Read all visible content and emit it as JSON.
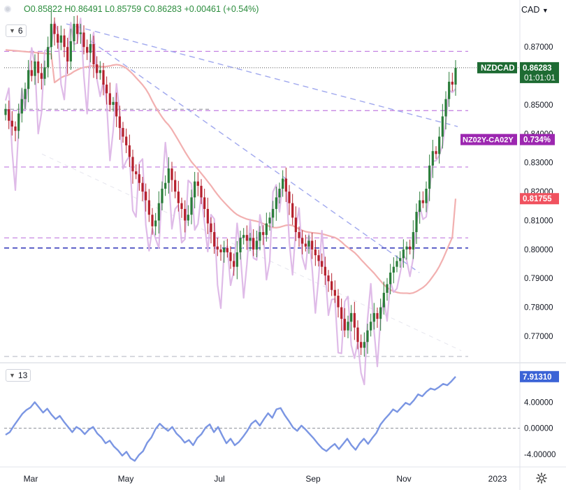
{
  "header": {
    "open": "O0.85822",
    "high": "H0.86491",
    "low": "L0.85759",
    "close": "C0.86283",
    "change": "+0.00461 (+0.54%)",
    "currency": "CAD"
  },
  "indicator_pills": {
    "main": "6",
    "lower": "13"
  },
  "colors": {
    "up": "#2a7d3a",
    "down": "#b5202d",
    "spread_line": "#dcb4e6",
    "ma_line": "#f2b0b0",
    "purple_dashed": "#c07be0",
    "blue_dashed": "#1a1fb0",
    "trend_dashed": "#a0a8ee",
    "oscillator": "#7b96e3",
    "price_label_bg": "#1e6b33",
    "spread_label_bg": "#9c27b0",
    "ma_label_bg": "#f0525f",
    "osc_label_bg": "#3b63d6"
  },
  "chart_data": [
    {
      "type": "candlestick",
      "symbol": "NZDCAD",
      "title": "",
      "x_ticks": [
        "Mar",
        "May",
        "Jul",
        "Sep",
        "Nov",
        "2023"
      ],
      "y_ticks": [
        "0.87000",
        "0.85000",
        "0.84000",
        "0.83000",
        "0.82000",
        "0.81000",
        "0.80000",
        "0.79000",
        "0.78000",
        "0.77000"
      ],
      "ylim": [
        0.7625,
        0.879
      ],
      "closes": [
        0.8485,
        0.8445,
        0.8425,
        0.841,
        0.847,
        0.852,
        0.8555,
        0.862,
        0.86,
        0.865,
        0.861,
        0.859,
        0.863,
        0.87,
        0.878,
        0.8745,
        0.8715,
        0.874,
        0.87,
        0.865,
        0.872,
        0.878,
        0.8745,
        0.875,
        0.87,
        0.868,
        0.871,
        0.864,
        0.861,
        0.862,
        0.857,
        0.854,
        0.85,
        0.851,
        0.846,
        0.842,
        0.839,
        0.836,
        0.832,
        0.827,
        0.826,
        0.823,
        0.82,
        0.817,
        0.812,
        0.808,
        0.81,
        0.816,
        0.821,
        0.823,
        0.828,
        0.824,
        0.82,
        0.816,
        0.814,
        0.81,
        0.812,
        0.818,
        0.8235,
        0.822,
        0.818,
        0.814,
        0.809,
        0.806,
        0.801,
        0.8,
        0.799,
        0.8005,
        0.799,
        0.796,
        0.794,
        0.799,
        0.804,
        0.805,
        0.803,
        0.804,
        0.8,
        0.803,
        0.806,
        0.805,
        0.809,
        0.811,
        0.814,
        0.818,
        0.821,
        0.8245,
        0.82,
        0.816,
        0.811,
        0.806,
        0.804,
        0.802,
        0.801,
        0.803,
        0.8,
        0.798,
        0.796,
        0.794,
        0.791,
        0.789,
        0.786,
        0.784,
        0.78,
        0.776,
        0.772,
        0.775,
        0.778,
        0.773,
        0.768,
        0.766,
        0.768,
        0.772,
        0.775,
        0.778,
        0.776,
        0.78,
        0.785,
        0.788,
        0.792,
        0.794,
        0.796,
        0.797,
        0.8,
        0.801,
        0.8,
        0.806,
        0.813,
        0.817,
        0.816,
        0.821,
        0.829,
        0.834,
        0.833,
        0.839,
        0.846,
        0.852,
        0.858,
        0.857,
        0.8628
      ],
      "spread": {
        "name": "NZ02Y-CA02Y",
        "last_label": "0.734%"
      },
      "moving_average": {
        "last_label": "0.81755"
      },
      "price_label": "NZDCAD",
      "price_value": "0.86283",
      "price_timer": "01:01:01",
      "horizontal_levels": [
        0.8685,
        0.848,
        0.8285,
        0.804
      ],
      "blue_level": 0.8005,
      "bottom_level": 0.763
    },
    {
      "type": "line",
      "title": "",
      "y_ticks": [
        "4.00000",
        "0.00000",
        "-4.00000"
      ],
      "ylim": [
        -5.5,
        9.5
      ],
      "last_label": "7.91310",
      "values": [
        -1.0,
        -0.6,
        0.4,
        1.3,
        2.2,
        2.8,
        3.2,
        4.0,
        3.2,
        2.4,
        3.0,
        2.1,
        1.4,
        1.9,
        1.0,
        0.2,
        -0.6,
        0.2,
        -0.2,
        -0.9,
        -0.2,
        0.2,
        -0.8,
        -1.4,
        -2.3,
        -1.9,
        -2.8,
        -3.4,
        -4.2,
        -3.6,
        -4.6,
        -5.0,
        -4.1,
        -3.5,
        -2.2,
        -1.4,
        -0.1,
        0.7,
        0.1,
        -0.4,
        0.2,
        -0.8,
        -1.4,
        -2.2,
        -1.8,
        -2.6,
        -1.5,
        -0.9,
        0.1,
        0.6,
        -0.6,
        0.2,
        -1.1,
        -2.3,
        -1.6,
        -2.6,
        -2.1,
        -1.3,
        -0.4,
        0.7,
        1.2,
        0.4,
        1.4,
        2.3,
        1.6,
        2.9,
        3.1,
        2.0,
        1.1,
        0.1,
        -0.4,
        0.4,
        -0.2,
        -0.9,
        -1.6,
        -2.4,
        -3.1,
        -3.5,
        -2.9,
        -2.4,
        -3.2,
        -2.4,
        -1.6,
        -2.6,
        -3.3,
        -2.3,
        -1.6,
        -2.4,
        -1.5,
        -0.7,
        0.6,
        1.4,
        2.1,
        2.9,
        2.5,
        3.2,
        3.9,
        3.6,
        4.3,
        5.2,
        4.9,
        5.6,
        6.1,
        5.9,
        6.3,
        6.8,
        6.6,
        7.2,
        7.91
      ]
    }
  ]
}
